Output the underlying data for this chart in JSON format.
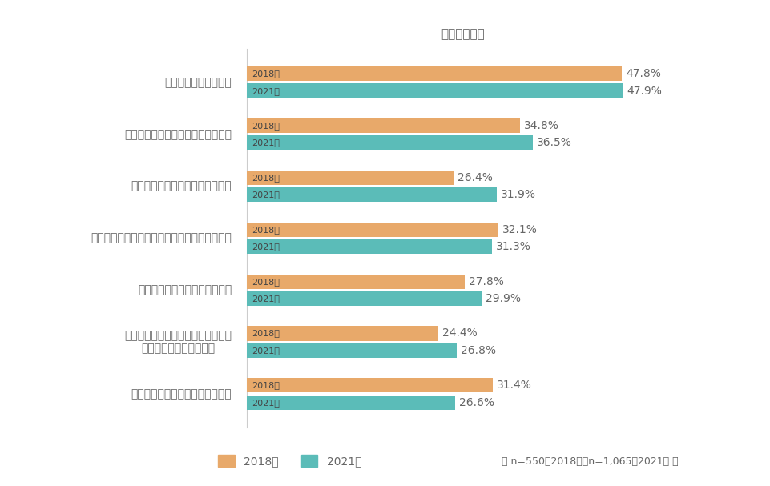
{
  "title": "（複数回答）",
  "categories": [
    "給与アップしたいから",
    "女性が活躍できる職場にしたいから",
    "もっと大きな裁量をもちたいから",
    "女性管理職としてロールモデルになりたいから",
    "上位の管理職を経験したいから",
    "自分が実現したいことのためには、\n昇進・昇格が必要だから",
    "職場の環境や制度を変えたいから"
  ],
  "values_2018": [
    47.8,
    34.8,
    26.4,
    32.1,
    27.8,
    24.4,
    31.4
  ],
  "values_2021": [
    47.9,
    36.5,
    31.9,
    31.3,
    29.9,
    26.8,
    26.6
  ],
  "color_2018": "#E8A96A",
  "color_2021": "#5BBCB8",
  "bar_label_2018": [
    "47.8%",
    "34.8%",
    "26.4%",
    "32.1%",
    "27.8%",
    "24.4%",
    "31.4%"
  ],
  "bar_label_2021": [
    "47.9%",
    "36.5%",
    "31.9%",
    "31.3%",
    "29.9%",
    "26.8%",
    "26.6%"
  ],
  "year_label_2018": "2018年",
  "year_label_2021": "2021年",
  "legend_2018": "2018年",
  "legend_2021": "2021年",
  "footnote": "（ n=550　2018年、n=1,065　2021年 ）",
  "xlim": [
    0,
    55
  ],
  "bg_color": "#FFFFFF",
  "text_color": "#666666",
  "year_text_color": "#444444",
  "bar_height": 0.28,
  "bar_gap": 0.05,
  "font_size_labels": 10,
  "font_size_title": 11,
  "font_size_year": 8,
  "font_size_pct": 10,
  "font_size_legend": 10,
  "font_size_footnote": 9
}
